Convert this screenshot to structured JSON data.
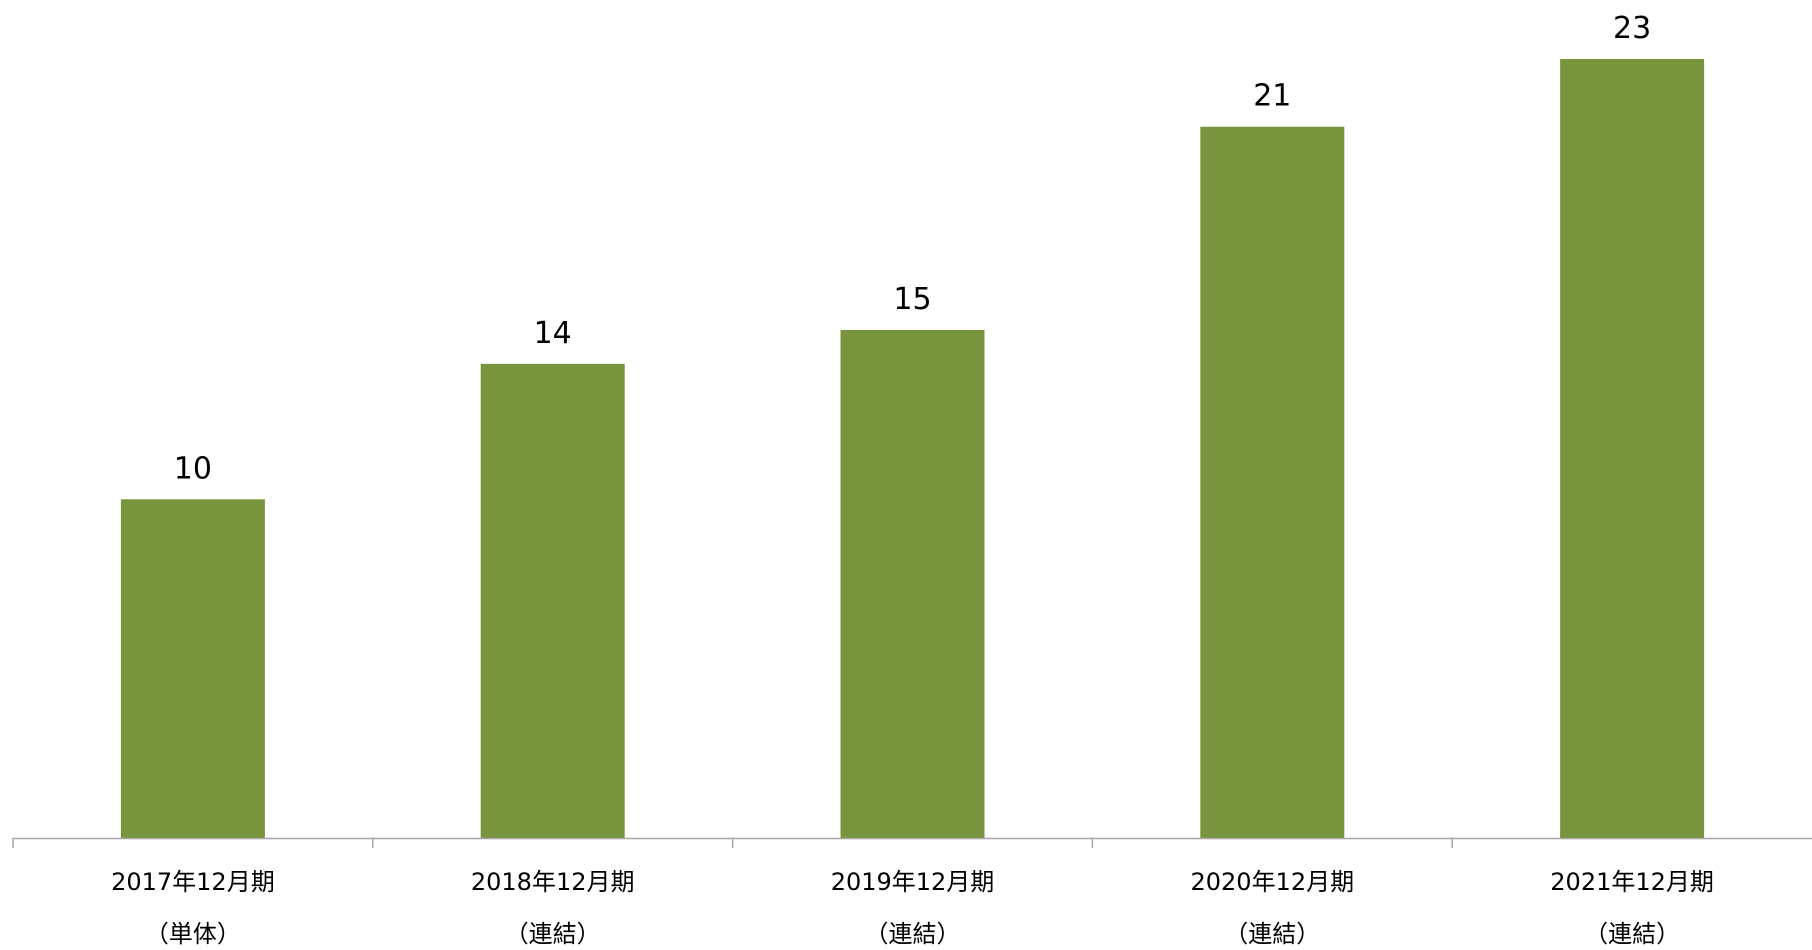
{
  "chart_data": {
    "type": "bar",
    "categories": [
      {
        "line1": "2017年12月期",
        "line2": "（単体）"
      },
      {
        "line1": "2018年12月期",
        "line2": "（連結）"
      },
      {
        "line1": "2019年12月期",
        "line2": "（連結）"
      },
      {
        "line1": "2020年12月期",
        "line2": "（連結）"
      },
      {
        "line1": "2021年12月期",
        "line2": "（連結）"
      }
    ],
    "values": [
      10,
      14,
      15,
      21,
      23
    ],
    "data_labels": [
      "10",
      "14",
      "15",
      "21",
      "23"
    ],
    "ylim": [
      0,
      23
    ],
    "bar_color": "#78943C",
    "axis_color": "#A6A6A6",
    "grid": false,
    "legend": "none"
  }
}
